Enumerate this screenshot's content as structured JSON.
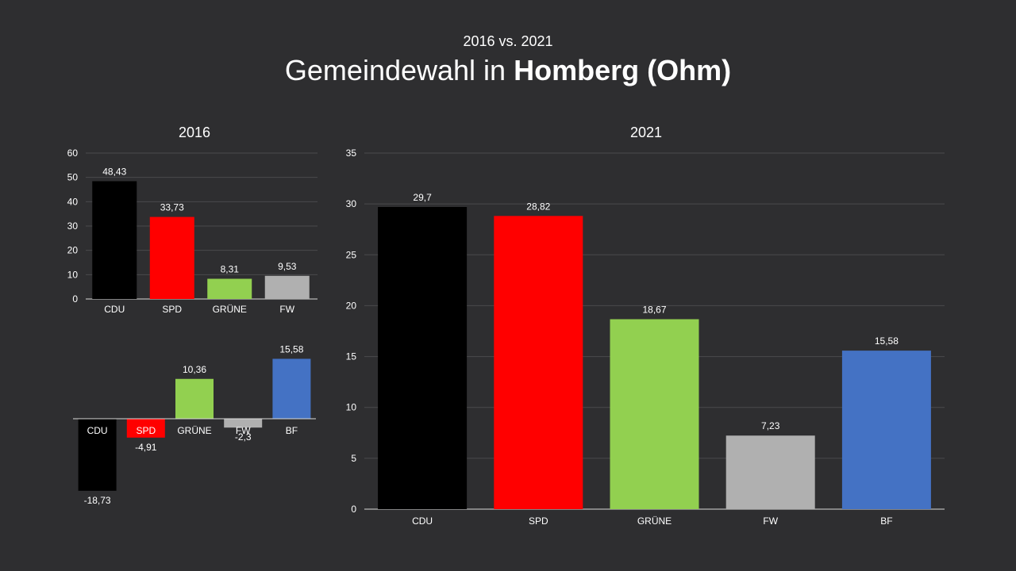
{
  "header": {
    "subtitle": "2016 vs. 2021",
    "title_prefix": "Gemeindewahl in",
    "title_place": "Homberg (Ohm)"
  },
  "chart_data": [
    {
      "id": "c2016",
      "type": "bar",
      "title": "2016",
      "categories": [
        "CDU",
        "SPD",
        "GRÜNE",
        "FW"
      ],
      "values": [
        48.43,
        33.73,
        8.31,
        9.53
      ],
      "labels": [
        "48,43",
        "33,73",
        "8,31",
        "9,53"
      ],
      "colors": [
        "#000000",
        "#ff0000",
        "#92d050",
        "#b0b0b0"
      ],
      "ylim": [
        0,
        60
      ],
      "yticks": [
        0,
        10,
        20,
        30,
        40,
        50,
        60
      ],
      "grid": true
    },
    {
      "id": "cdiff",
      "type": "bar",
      "title": "",
      "categories": [
        "CDU",
        "SPD",
        "GRÜNE",
        "FW",
        "BF"
      ],
      "values": [
        -18.73,
        -4.91,
        10.36,
        -2.3,
        15.58
      ],
      "labels": [
        "-18,73",
        "-4,91",
        "10,36",
        "-2,3",
        "15,58"
      ],
      "colors": [
        "#000000",
        "#ff0000",
        "#92d050",
        "#b0b0b0",
        "#4472c4"
      ],
      "ylim": [
        -20,
        16
      ],
      "grid": false
    },
    {
      "id": "c2021",
      "type": "bar",
      "title": "2021",
      "categories": [
        "CDU",
        "SPD",
        "GRÜNE",
        "FW",
        "BF"
      ],
      "values": [
        29.7,
        28.82,
        18.67,
        7.23,
        15.58
      ],
      "labels": [
        "29,7",
        "28,82",
        "18,67",
        "7,23",
        "15,58"
      ],
      "colors": [
        "#000000",
        "#ff0000",
        "#92d050",
        "#b0b0b0",
        "#4472c4"
      ],
      "ylim": [
        0,
        35
      ],
      "yticks": [
        0,
        5,
        10,
        15,
        20,
        25,
        30,
        35
      ],
      "grid": true
    }
  ]
}
